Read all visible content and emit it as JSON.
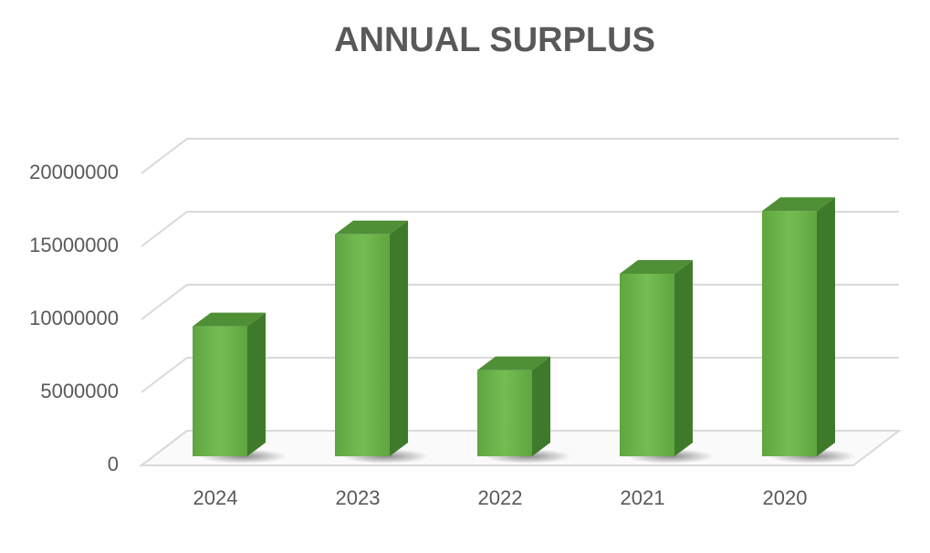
{
  "chart_data": {
    "type": "bar",
    "title": "ANNUAL SURPLUS",
    "categories": [
      "2024",
      "2023",
      "2022",
      "2021",
      "2020"
    ],
    "values": [
      8900000,
      15200000,
      5900000,
      12500000,
      16800000
    ],
    "color": "#6ab04c",
    "ylim": [
      0,
      20000000
    ],
    "yticks": [
      0,
      5000000,
      10000000,
      15000000,
      20000000
    ],
    "grid": true
  }
}
